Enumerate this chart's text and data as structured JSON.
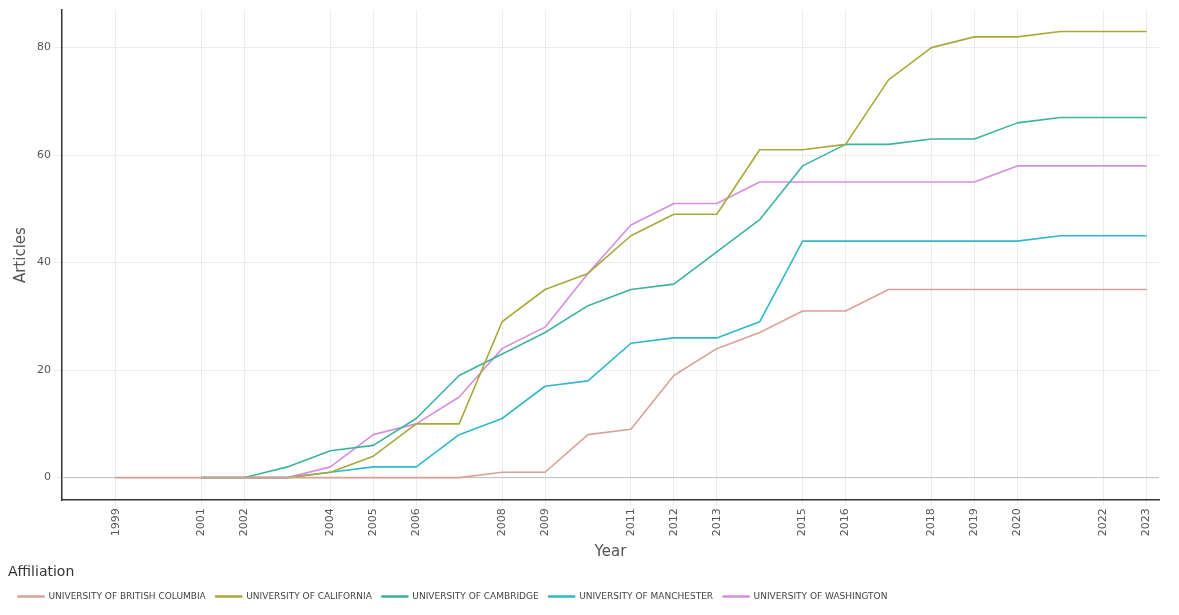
{
  "chart_data": {
    "type": "line",
    "xlabel": "Year",
    "ylabel": "Articles",
    "legend_title": "Affiliation",
    "legend": "bottom",
    "grid": true,
    "marker": "none",
    "line_style": "solid",
    "x": [
      1999,
      2000,
      2001,
      2002,
      2003,
      2004,
      2005,
      2006,
      2007,
      2008,
      2009,
      2010,
      2011,
      2012,
      2013,
      2014,
      2015,
      2016,
      2017,
      2018,
      2019,
      2020,
      2021,
      2022,
      2023
    ],
    "xlim": [
      1997.75,
      2023.3
    ],
    "xticks": [
      1999,
      2001,
      2002,
      2004,
      2005,
      2006,
      2008,
      2009,
      2011,
      2012,
      2013,
      2015,
      2016,
      2018,
      2019,
      2020,
      2022,
      2023
    ],
    "ylim": [
      -4.2,
      87
    ],
    "yticks": [
      0,
      20,
      40,
      60,
      80
    ],
    "ref_lines": [
      {
        "axis": "y",
        "value": 0,
        "color": "#bdbdbd"
      }
    ],
    "series": [
      {
        "name": "UNIVERSITY OF BRITISH COLUMBIA",
        "color": "#d9a19a",
        "values": [
          0,
          0,
          0,
          0,
          0,
          0,
          0,
          0,
          0,
          1,
          1,
          8,
          9,
          19,
          24,
          27,
          31,
          31,
          35,
          35,
          35,
          35,
          35,
          35,
          35
        ]
      },
      {
        "name": "UNIVERSITY OF CALIFORNIA",
        "color": "#a9a83a",
        "values": [
          null,
          null,
          0,
          0,
          0,
          1,
          4,
          10,
          10,
          29,
          35,
          38,
          45,
          49,
          49,
          61,
          61,
          62,
          74,
          80,
          82,
          82,
          83,
          83,
          83
        ]
      },
      {
        "name": "UNIVERSITY OF CAMBRIDGE",
        "color": "#3bb3a0",
        "values": [
          null,
          null,
          0,
          0,
          2,
          5,
          6,
          11,
          19,
          23,
          27,
          32,
          35,
          36,
          42,
          48,
          58,
          62,
          62,
          63,
          63,
          66,
          67,
          67,
          67
        ]
      },
      {
        "name": "UNIVERSITY OF MANCHESTER",
        "color": "#2fb8cc",
        "values": [
          null,
          null,
          0,
          0,
          0,
          1,
          2,
          2,
          8,
          11,
          17,
          18,
          25,
          26,
          26,
          29,
          44,
          44,
          44,
          44,
          44,
          44,
          45,
          45,
          45
        ]
      },
      {
        "name": "UNIVERSITY OF WASHINGTON",
        "color": "#d68ee0",
        "values": [
          null,
          null,
          null,
          0,
          0,
          2,
          8,
          10,
          15,
          24,
          28,
          38,
          47,
          51,
          51,
          55,
          55,
          55,
          55,
          55,
          55,
          58,
          58,
          58,
          58
        ]
      }
    ]
  }
}
